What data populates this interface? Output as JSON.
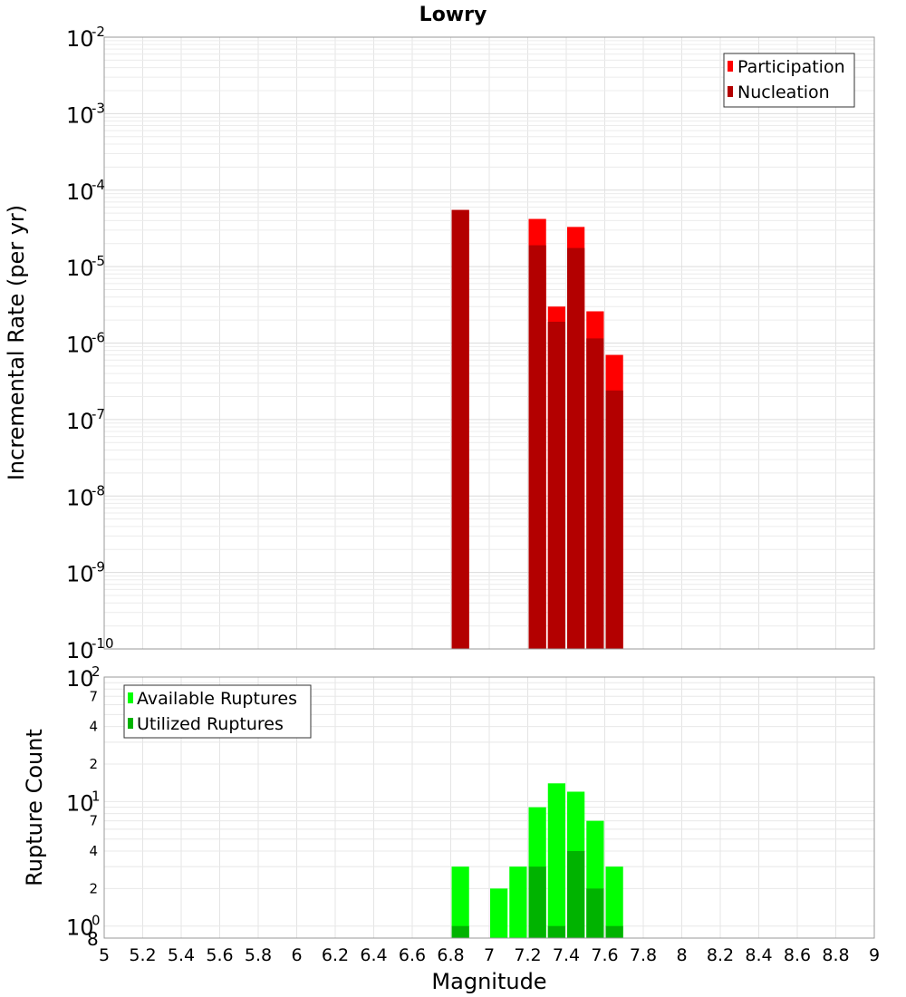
{
  "chart_data": [
    {
      "type": "bar",
      "title": "Lowry",
      "xlabel": "Magnitude",
      "ylabel": "Incremental Rate (per yr)",
      "log_y": true,
      "xlim": [
        5,
        9
      ],
      "ylim": [
        1e-10,
        0.01
      ],
      "grid": true,
      "bar_width": 0.1,
      "legend_position": "top-right",
      "x_ticks": [
        "5",
        "5.2",
        "5.4",
        "5.6",
        "5.8",
        "6",
        "6.2",
        "6.4",
        "6.6",
        "6.8",
        "7",
        "7.2",
        "7.4",
        "7.6",
        "7.8",
        "8",
        "8.2",
        "8.4",
        "8.6",
        "8.8",
        "9"
      ],
      "y_ticks": [
        {
          "base": "10",
          "exp": "-2"
        },
        {
          "base": "10",
          "exp": "-3"
        },
        {
          "base": "10",
          "exp": "-4"
        },
        {
          "base": "10",
          "exp": "-5"
        },
        {
          "base": "10",
          "exp": "-6"
        },
        {
          "base": "10",
          "exp": "-7"
        },
        {
          "base": "10",
          "exp": "-8"
        },
        {
          "base": "10",
          "exp": "-9"
        },
        {
          "base": "10",
          "exp": "-10"
        }
      ],
      "series": [
        {
          "name": "Participation",
          "color": "#ff0000",
          "x": [
            6.85,
            7.25,
            7.35,
            7.45,
            7.55,
            7.65
          ],
          "values": [
            5.5e-05,
            4.2e-05,
            3e-06,
            3.3e-05,
            2.6e-06,
            7e-07
          ]
        },
        {
          "name": "Nucleation",
          "color": "#b30000",
          "x": [
            6.85,
            7.25,
            7.35,
            7.45,
            7.55,
            7.65
          ],
          "values": [
            5.5e-05,
            1.9e-05,
            1.9e-06,
            1.75e-05,
            1.15e-06,
            2.4e-07
          ]
        }
      ]
    },
    {
      "type": "bar",
      "xlabel": "Magnitude",
      "ylabel": "Rupture Count",
      "log_y": true,
      "xlim": [
        5,
        9
      ],
      "ylim": [
        0.8,
        100
      ],
      "grid": true,
      "bar_width": 0.1,
      "legend_position": "top-left",
      "y_ticks": [
        {
          "label": "10",
          "exp": "2"
        },
        {
          "label": "7"
        },
        {
          "label": "4"
        },
        {
          "label": "2"
        },
        {
          "label": "10",
          "exp": "1"
        },
        {
          "label": "7"
        },
        {
          "label": "4"
        },
        {
          "label": "2"
        },
        {
          "label": "10",
          "exp": "0"
        },
        {
          "label": "8"
        }
      ],
      "series": [
        {
          "name": "Available Ruptures",
          "color": "#00ff00",
          "x": [
            6.85,
            7.05,
            7.15,
            7.25,
            7.35,
            7.45,
            7.55,
            7.65
          ],
          "values": [
            3,
            2,
            3,
            9,
            14,
            12,
            7,
            3
          ]
        },
        {
          "name": "Utilized Ruptures",
          "color": "#00b300",
          "x": [
            6.85,
            7.25,
            7.35,
            7.45,
            7.55,
            7.65
          ],
          "values": [
            1,
            3,
            1,
            4,
            2,
            1
          ]
        }
      ]
    }
  ]
}
